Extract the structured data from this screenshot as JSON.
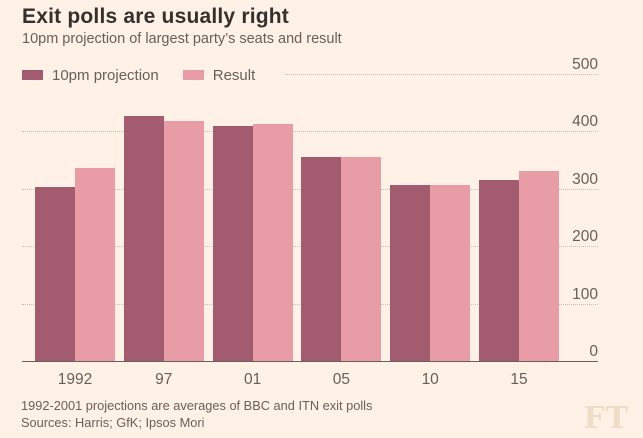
{
  "header": {
    "title": "Exit polls are usually right",
    "subtitle": "10pm projection of largest party’s seats and result"
  },
  "legend": {
    "items": [
      {
        "label": "10pm projection",
        "color": "#a35b70"
      },
      {
        "label": "Result",
        "color": "#e89da6"
      }
    ]
  },
  "chart_data": {
    "type": "bar",
    "title": "Exit polls are usually right",
    "subtitle": "10pm projection of largest party’s seats and result",
    "categories": [
      "1992",
      "97",
      "01",
      "05",
      "10",
      "15"
    ],
    "series": [
      {
        "name": "10pm projection",
        "color": "#a35b70",
        "values": [
          303,
          426,
          410,
          356,
          307,
          316
        ]
      },
      {
        "name": "Result",
        "color": "#e89da6",
        "values": [
          336,
          418,
          413,
          355,
          306,
          331
        ]
      }
    ],
    "xlabel": "",
    "ylabel": "",
    "ylim": [
      0,
      500
    ],
    "yticks": [
      0,
      100,
      200,
      300,
      400,
      500
    ],
    "y_axis_side": "right",
    "grid": "horizontal-dotted",
    "legend_position": "top-left"
  },
  "footer": {
    "note": "1992-2001 projections are averages of BBC and ITN exit polls",
    "sources": "Sources: Harris; GfK; Ipsos Mori",
    "logo": "FT"
  },
  "theme": {
    "background": "#fff1e5",
    "title_color": "#33302e",
    "text_color": "#66605c",
    "grid_color": "#cbbcab",
    "axis_color": "#66605c",
    "logo_color": "#f0ddc7"
  }
}
